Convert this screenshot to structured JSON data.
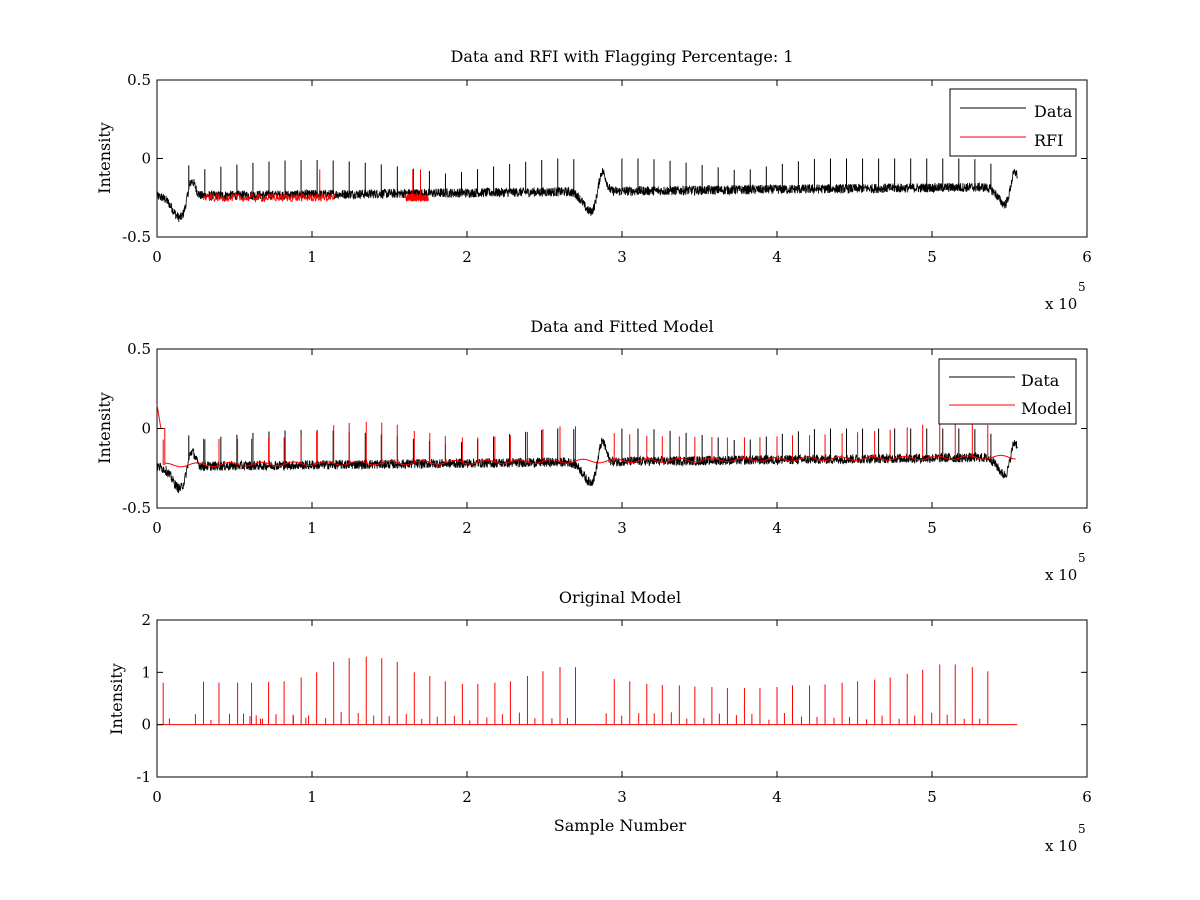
{
  "chart_data": [
    {
      "type": "line",
      "title": "Data and RFI with Flagging Percentage: 1",
      "xlabel": "",
      "ylabel": "Intensity",
      "xlim": [
        0,
        600000
      ],
      "ylim": [
        -0.5,
        0.5
      ],
      "x_ticks": [
        "0",
        "1",
        "2",
        "3",
        "4",
        "5",
        "6"
      ],
      "y_ticks": [
        "0.5",
        "0",
        "-0.5"
      ],
      "x_exponent": {
        "base": "x 10",
        "power": "5"
      },
      "legend": {
        "position": "top-right",
        "entries": [
          "Data",
          "RFI"
        ]
      },
      "grid": false,
      "series": [
        {
          "name": "Data",
          "color": "#000000",
          "x_range": [
            0,
            555000
          ],
          "baseline": -0.24,
          "baseline_end": -0.18,
          "noise": 0.03,
          "spike_top": 0.0
        },
        {
          "name": "RFI",
          "color": "#ff0000",
          "segments": [
            [
              30000,
              115000
            ],
            [
              160000,
              175000
            ]
          ],
          "level": -0.25
        }
      ]
    },
    {
      "type": "line",
      "title": "Data and Fitted Model",
      "xlabel": "",
      "ylabel": "Intensity",
      "xlim": [
        0,
        600000
      ],
      "ylim": [
        -0.5,
        0.5
      ],
      "x_ticks": [
        "0",
        "1",
        "2",
        "3",
        "4",
        "5",
        "6"
      ],
      "y_ticks": [
        "0.5",
        "0",
        "-0.5"
      ],
      "x_exponent": {
        "base": "x 10",
        "power": "5"
      },
      "legend": {
        "position": "top-right",
        "entries": [
          "Data",
          "Model"
        ]
      },
      "grid": false,
      "series": [
        {
          "name": "Data",
          "color": "#000000",
          "x_range": [
            0,
            555000
          ],
          "baseline": -0.24,
          "baseline_end": -0.18,
          "noise": 0.03
        },
        {
          "name": "Model",
          "color": "#ff0000",
          "x_range": [
            0,
            555000
          ],
          "baseline": -0.23,
          "baseline_end": -0.18,
          "start_value": 0.15
        }
      ]
    },
    {
      "type": "line",
      "title": "Original Model",
      "xlabel": "Sample Number",
      "ylabel": "Intensity",
      "xlim": [
        0,
        600000
      ],
      "ylim": [
        -1,
        2
      ],
      "x_ticks": [
        "0",
        "1",
        "2",
        "3",
        "4",
        "5",
        "6"
      ],
      "y_ticks": [
        "2",
        "1",
        "0",
        "-1"
      ],
      "x_exponent": {
        "base": "x 10",
        "power": "5"
      },
      "grid": false,
      "series": [
        {
          "name": "Original Model",
          "color": "#ff0000",
          "x_range": [
            0,
            555000
          ],
          "baseline": 0,
          "spikes": [
            {
              "x": 4000,
              "y": 0.8
            },
            {
              "x": 30000,
              "y": 0.82
            },
            {
              "x": 40000,
              "y": 0.8
            },
            {
              "x": 52000,
              "y": 0.8
            },
            {
              "x": 61000,
              "y": 0.8
            },
            {
              "x": 72000,
              "y": 0.82
            },
            {
              "x": 82000,
              "y": 0.83
            },
            {
              "x": 93000,
              "y": 0.9
            },
            {
              "x": 103000,
              "y": 1.0
            },
            {
              "x": 114000,
              "y": 1.2
            },
            {
              "x": 124000,
              "y": 1.27
            },
            {
              "x": 135000,
              "y": 1.3
            },
            {
              "x": 145000,
              "y": 1.27
            },
            {
              "x": 155000,
              "y": 1.2
            },
            {
              "x": 166000,
              "y": 1.0
            },
            {
              "x": 176000,
              "y": 0.93
            },
            {
              "x": 186000,
              "y": 0.83
            },
            {
              "x": 197000,
              "y": 0.78
            },
            {
              "x": 207000,
              "y": 0.78
            },
            {
              "x": 218000,
              "y": 0.8
            },
            {
              "x": 228000,
              "y": 0.83
            },
            {
              "x": 239000,
              "y": 0.93
            },
            {
              "x": 249000,
              "y": 1.02
            },
            {
              "x": 260000,
              "y": 1.1
            },
            {
              "x": 270000,
              "y": 1.1
            },
            {
              "x": 295000,
              "y": 0.87
            },
            {
              "x": 305000,
              "y": 0.83
            },
            {
              "x": 316000,
              "y": 0.78
            },
            {
              "x": 326000,
              "y": 0.76
            },
            {
              "x": 337000,
              "y": 0.75
            },
            {
              "x": 347000,
              "y": 0.73
            },
            {
              "x": 358000,
              "y": 0.72
            },
            {
              "x": 368000,
              "y": 0.7
            },
            {
              "x": 379000,
              "y": 0.7
            },
            {
              "x": 389000,
              "y": 0.7
            },
            {
              "x": 400000,
              "y": 0.72
            },
            {
              "x": 410000,
              "y": 0.75
            },
            {
              "x": 421000,
              "y": 0.75
            },
            {
              "x": 431000,
              "y": 0.77
            },
            {
              "x": 442000,
              "y": 0.8
            },
            {
              "x": 452000,
              "y": 0.83
            },
            {
              "x": 463000,
              "y": 0.86
            },
            {
              "x": 473000,
              "y": 0.9
            },
            {
              "x": 484000,
              "y": 0.97
            },
            {
              "x": 494000,
              "y": 1.05
            },
            {
              "x": 505000,
              "y": 1.15
            },
            {
              "x": 515000,
              "y": 1.15
            },
            {
              "x": 526000,
              "y": 1.1
            },
            {
              "x": 536000,
              "y": 1.02
            }
          ]
        }
      ]
    }
  ]
}
